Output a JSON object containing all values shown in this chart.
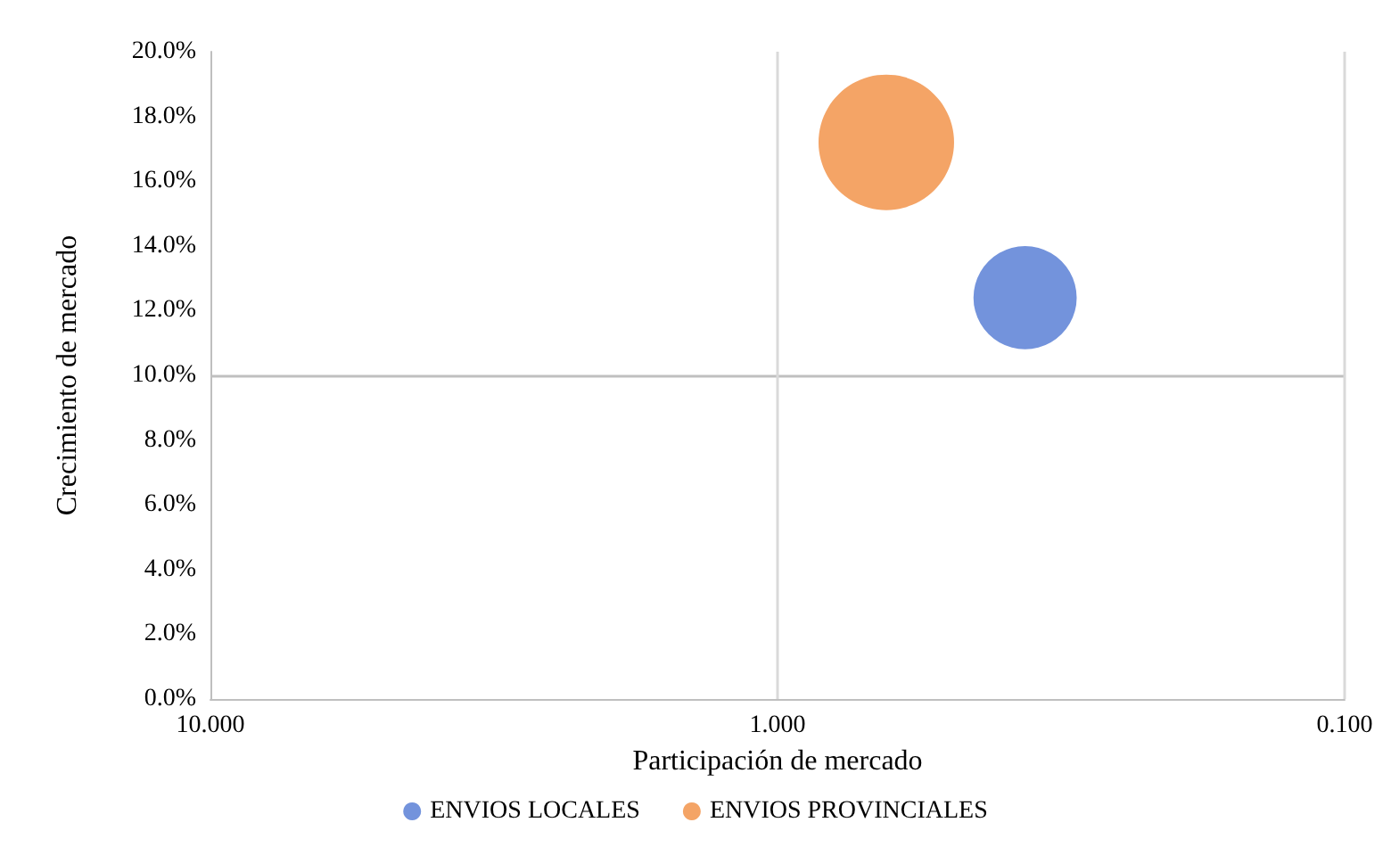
{
  "chart_data": {
    "type": "bubble",
    "xlabel": "Participación de mercado",
    "ylabel": "Crecimiento de mercado",
    "series": [
      {
        "name": "ENVIOS LOCALES",
        "color": "#7393dc",
        "x": [
          0.366
        ],
        "values": [
          12.4
        ],
        "sizes": [
          0.58
        ]
      },
      {
        "name": "ENVIOS PROVINCIALES",
        "color": "#f4a466",
        "x": [
          0.643
        ],
        "values": [
          17.2
        ],
        "sizes": [
          1
        ]
      }
    ],
    "log": "x",
    "xlim": [
      10,
      0.1
    ],
    "xticks": [
      {
        "value": 10,
        "label": "10.000"
      },
      {
        "value": 1,
        "label": "1.000"
      },
      {
        "value": 0.1,
        "label": "0.100"
      }
    ],
    "ylim": [
      0,
      20
    ],
    "yticks": [
      {
        "value": 0,
        "label": "0.0%"
      },
      {
        "value": 2,
        "label": "2.0%"
      },
      {
        "value": 4,
        "label": "4.0%"
      },
      {
        "value": 6,
        "label": "6.0%"
      },
      {
        "value": 8,
        "label": "8.0%"
      },
      {
        "value": 10,
        "label": "10.0%"
      },
      {
        "value": 12,
        "label": "12.0%"
      },
      {
        "value": 14,
        "label": "14.0%"
      },
      {
        "value": 16,
        "label": "16.0%"
      },
      {
        "value": 18,
        "label": "18.0%"
      },
      {
        "value": 20,
        "label": "20.0%"
      }
    ],
    "ref_lines": [
      {
        "axis": "y",
        "value": 10,
        "color": "#bfbfbf"
      },
      {
        "axis": "x",
        "value": 1,
        "color": "#d9d9d9"
      },
      {
        "axis": "x",
        "value": 0.1,
        "color": "#d9d9d9"
      }
    ],
    "legend": "bottom",
    "marker": "circle"
  }
}
